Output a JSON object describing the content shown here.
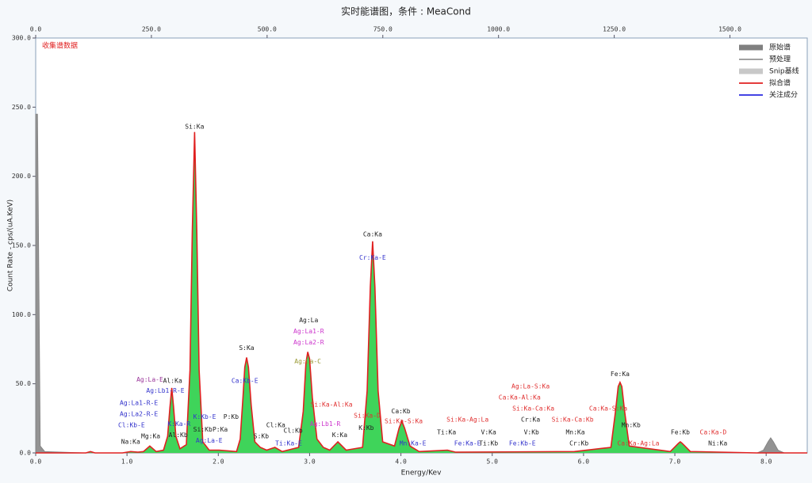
{
  "chart_data": {
    "type": "area",
    "title": "实时能谱图，条件 : MeaCond",
    "status_label": "收集谱数据",
    "x_label": "Energy/Kev",
    "y_label": "Count Rate - cps/(uA.KeV)",
    "xlim": [
      0,
      8.45
    ],
    "xticks": [
      {
        "value": 0,
        "label": "0.0"
      },
      {
        "value": 1,
        "label": "1.0"
      },
      {
        "value": 2,
        "label": "2.0"
      },
      {
        "value": 3,
        "label": "3.0"
      },
      {
        "value": 4,
        "label": "4.0"
      },
      {
        "value": 5,
        "label": "5.0"
      },
      {
        "value": 6,
        "label": "6.0"
      },
      {
        "value": 7,
        "label": "7.0"
      },
      {
        "value": 8,
        "label": "8.0"
      }
    ],
    "x2lim": [
      0,
      1667
    ],
    "x2ticks": [
      {
        "value": 0,
        "label": "0.0"
      },
      {
        "value": 250,
        "label": "250.0"
      },
      {
        "value": 500,
        "label": "500.0"
      },
      {
        "value": 750,
        "label": "750.0"
      },
      {
        "value": 1000,
        "label": "1000.0"
      },
      {
        "value": 1250,
        "label": "1250.0"
      },
      {
        "value": 1500,
        "label": "1500.0"
      }
    ],
    "ylim": [
      0,
      300
    ],
    "yticks": [
      {
        "value": 0,
        "label": "0.0"
      },
      {
        "value": 50,
        "label": "50.0"
      },
      {
        "value": 100,
        "label": "100.0"
      },
      {
        "value": 150,
        "label": "150.0"
      },
      {
        "value": 200,
        "label": "200.0"
      },
      {
        "value": 250,
        "label": "250.0"
      },
      {
        "value": 300,
        "label": "300.0"
      }
    ],
    "legend": "top-right",
    "x": [
      0,
      0.02,
      0.05,
      0.1,
      0.55,
      0.6,
      0.65,
      0.95,
      1.04,
      1.12,
      1.18,
      1.25,
      1.32,
      1.4,
      1.445,
      1.47,
      1.49,
      1.51,
      1.535,
      1.58,
      1.65,
      1.69,
      1.715,
      1.74,
      1.765,
      1.79,
      1.83,
      1.9,
      2.01,
      2.2,
      2.24,
      2.27,
      2.29,
      2.31,
      2.33,
      2.36,
      2.4,
      2.46,
      2.53,
      2.62,
      2.7,
      2.88,
      2.93,
      2.96,
      2.98,
      3.0,
      3.03,
      3.08,
      3.15,
      3.22,
      3.31,
      3.4,
      3.58,
      3.63,
      3.665,
      3.69,
      3.715,
      3.75,
      3.8,
      3.93,
      3.98,
      4.01,
      4.04,
      4.1,
      4.2,
      4.51,
      4.6,
      5.9,
      6.3,
      6.35,
      6.38,
      6.4,
      6.42,
      6.45,
      6.5,
      6.95,
      7.01,
      7.04,
      7.06,
      7.08,
      7.11,
      7.17,
      7.9,
      7.97,
      8.02,
      8.05,
      8.08,
      8.13,
      8.2,
      8.45
    ],
    "series": [
      {
        "name": "原始谱",
        "color": "#808080",
        "style": "area",
        "values": [
          245,
          245,
          5,
          1,
          0,
          1,
          0,
          0,
          1,
          0.5,
          1,
          5,
          1,
          2,
          12,
          33,
          47,
          33,
          12,
          3,
          6,
          60,
          160,
          232,
          160,
          60,
          8,
          2,
          2,
          1,
          10,
          40,
          62,
          69,
          62,
          35,
          8,
          4,
          2,
          4,
          1,
          4,
          30,
          65,
          73,
          68,
          40,
          10,
          4,
          2,
          8,
          2,
          4,
          45,
          120,
          153,
          120,
          45,
          8,
          5,
          18,
          23,
          18,
          5,
          1,
          2,
          0.5,
          1,
          4,
          30,
          48,
          51,
          48,
          30,
          5,
          1,
          5,
          7,
          8,
          7,
          5,
          1,
          0,
          2,
          8,
          11,
          8,
          2,
          0,
          0
        ]
      },
      {
        "name": "预处理",
        "color": "#000000",
        "style": "line"
      },
      {
        "name": "Snip基线",
        "color": "#c8c8c8",
        "style": "area"
      },
      {
        "name": "拟合谱",
        "color": "#e02020",
        "style": "line",
        "fill": "#3fd45a",
        "values": [
          0,
          0,
          0,
          0,
          0,
          1,
          0,
          0,
          1,
          0.5,
          1,
          5,
          1,
          2,
          12,
          33,
          47,
          33,
          12,
          3,
          6,
          60,
          160,
          232,
          160,
          60,
          8,
          2,
          2,
          1,
          10,
          40,
          62,
          69,
          62,
          35,
          8,
          4,
          2,
          4,
          1,
          4,
          30,
          65,
          73,
          68,
          40,
          10,
          4,
          2,
          8,
          2,
          4,
          45,
          120,
          153,
          120,
          45,
          8,
          5,
          18,
          23,
          18,
          5,
          1,
          2,
          0.5,
          1,
          4,
          30,
          48,
          51,
          48,
          30,
          5,
          1,
          5,
          7,
          8,
          7,
          5,
          1,
          0,
          0,
          0,
          0,
          0,
          0,
          0,
          0
        ]
      },
      {
        "name": "关注成分",
        "color": "#2a2ae0",
        "style": "line"
      }
    ],
    "annotations": [
      {
        "text": "Si:Ka",
        "x": 1.74,
        "y": 236,
        "color": "#222222"
      },
      {
        "text": "Na:Ka",
        "x": 1.04,
        "y": 8,
        "color": "#222222"
      },
      {
        "text": "Mg:Ka",
        "x": 1.26,
        "y": 12,
        "color": "#222222"
      },
      {
        "text": "Al:Ka",
        "x": 1.5,
        "y": 52,
        "color": "#222222"
      },
      {
        "text": "Al:Kb",
        "x": 1.56,
        "y": 13,
        "color": "#222222"
      },
      {
        "text": "Ag:La-E",
        "x": 1.25,
        "y": 53,
        "color": "#993399"
      },
      {
        "text": "Ag:Lb1-R-E",
        "x": 1.42,
        "y": 45,
        "color": "#3333cc"
      },
      {
        "text": "Ag:La1-R-E",
        "x": 1.13,
        "y": 36,
        "color": "#3333cc"
      },
      {
        "text": "Ag:La2-R-E",
        "x": 1.13,
        "y": 28,
        "color": "#3333cc"
      },
      {
        "text": "Cl:Kb-E",
        "x": 1.05,
        "y": 20,
        "color": "#3333cc"
      },
      {
        "text": "K:Ka-R",
        "x": 1.57,
        "y": 21,
        "color": "#3333cc"
      },
      {
        "text": "K:Kb-E",
        "x": 1.85,
        "y": 26,
        "color": "#3333cc"
      },
      {
        "text": "Si:Kb",
        "x": 1.83,
        "y": 17,
        "color": "#222222"
      },
      {
        "text": "P:Ka",
        "x": 2.02,
        "y": 17,
        "color": "#222222"
      },
      {
        "text": "Ag:La-E",
        "x": 1.9,
        "y": 9,
        "color": "#3333cc"
      },
      {
        "text": "P:Kb",
        "x": 2.14,
        "y": 26,
        "color": "#222222"
      },
      {
        "text": "S:Ka",
        "x": 2.31,
        "y": 76,
        "color": "#222222"
      },
      {
        "text": "Ca:Kb-E",
        "x": 2.29,
        "y": 52,
        "color": "#3333cc"
      },
      {
        "text": "S:Kb",
        "x": 2.47,
        "y": 12,
        "color": "#222222"
      },
      {
        "text": "Cl:Ka",
        "x": 2.63,
        "y": 20,
        "color": "#222222"
      },
      {
        "text": "Cl:Kb",
        "x": 2.82,
        "y": 16,
        "color": "#222222"
      },
      {
        "text": "Ti:Ka-E",
        "x": 2.77,
        "y": 7,
        "color": "#3333cc"
      },
      {
        "text": "Ag:La",
        "x": 2.99,
        "y": 96,
        "color": "#222222"
      },
      {
        "text": "Ag:La1-R",
        "x": 2.99,
        "y": 88,
        "color": "#cc33cc"
      },
      {
        "text": "Ag:La2-R",
        "x": 2.99,
        "y": 80,
        "color": "#cc33cc"
      },
      {
        "text": "Ag:La-C",
        "x": 2.98,
        "y": 66,
        "color": "#999933"
      },
      {
        "text": "Si:Ka-Al:Ka",
        "x": 3.24,
        "y": 35,
        "color": "#e03030"
      },
      {
        "text": "Ag:Lb1-R",
        "x": 3.17,
        "y": 21,
        "color": "#cc33cc"
      },
      {
        "text": "K:Ka",
        "x": 3.33,
        "y": 13,
        "color": "#222222"
      },
      {
        "text": "Si:Ka-D",
        "x": 3.63,
        "y": 27,
        "color": "#e03030"
      },
      {
        "text": "K:Kb",
        "x": 3.62,
        "y": 18,
        "color": "#222222"
      },
      {
        "text": "Ca:Ka",
        "x": 3.69,
        "y": 158,
        "color": "#222222"
      },
      {
        "text": "Cr:Ka-E",
        "x": 3.69,
        "y": 141,
        "color": "#3333cc"
      },
      {
        "text": "Ca:Kb",
        "x": 4.0,
        "y": 30,
        "color": "#222222"
      },
      {
        "text": "Si:Ka-S:Ka",
        "x": 4.03,
        "y": 23,
        "color": "#e03030"
      },
      {
        "text": "Mn:Ka-E",
        "x": 4.13,
        "y": 7,
        "color": "#3333cc"
      },
      {
        "text": "Ti:Ka",
        "x": 4.5,
        "y": 15,
        "color": "#222222"
      },
      {
        "text": "Si:Ka-Ag:La",
        "x": 4.73,
        "y": 24,
        "color": "#e03030"
      },
      {
        "text": "Fe:Ka-E",
        "x": 4.73,
        "y": 7,
        "color": "#3333cc"
      },
      {
        "text": "V:Ka",
        "x": 4.96,
        "y": 15,
        "color": "#222222"
      },
      {
        "text": "Ti:Kb",
        "x": 4.96,
        "y": 7,
        "color": "#222222"
      },
      {
        "text": "Ag:La-S:Ka",
        "x": 5.42,
        "y": 48,
        "color": "#e03030"
      },
      {
        "text": "Ca:Ka-Al:Ka",
        "x": 5.3,
        "y": 40,
        "color": "#e03030"
      },
      {
        "text": "Si:Ka-Ca:Ka",
        "x": 5.45,
        "y": 32,
        "color": "#e03030"
      },
      {
        "text": "Cr:Ka",
        "x": 5.42,
        "y": 24,
        "color": "#222222"
      },
      {
        "text": "V:Kb",
        "x": 5.43,
        "y": 15,
        "color": "#222222"
      },
      {
        "text": "Fe:Kb-E",
        "x": 5.33,
        "y": 7,
        "color": "#3333cc"
      },
      {
        "text": "Si:Ka-Ca:Kb",
        "x": 5.88,
        "y": 24,
        "color": "#e03030"
      },
      {
        "text": "Ca:Ka-S:Ka",
        "x": 6.27,
        "y": 32,
        "color": "#e03030"
      },
      {
        "text": "Mn:Ka",
        "x": 5.91,
        "y": 15,
        "color": "#222222"
      },
      {
        "text": "Cr:Kb",
        "x": 5.95,
        "y": 7,
        "color": "#222222"
      },
      {
        "text": "Fe:Ka",
        "x": 6.4,
        "y": 57,
        "color": "#222222"
      },
      {
        "text": "Mn:Kb",
        "x": 6.52,
        "y": 20,
        "color": "#222222"
      },
      {
        "text": "Ca:Ka-Ag:La",
        "x": 6.6,
        "y": 7,
        "color": "#e03030"
      },
      {
        "text": "Fe:Kb",
        "x": 7.06,
        "y": 15,
        "color": "#222222"
      },
      {
        "text": "Ca:Ka-D",
        "x": 7.42,
        "y": 15,
        "color": "#e03030"
      },
      {
        "text": "Ni:Ka",
        "x": 7.47,
        "y": 7,
        "color": "#222222"
      }
    ]
  }
}
